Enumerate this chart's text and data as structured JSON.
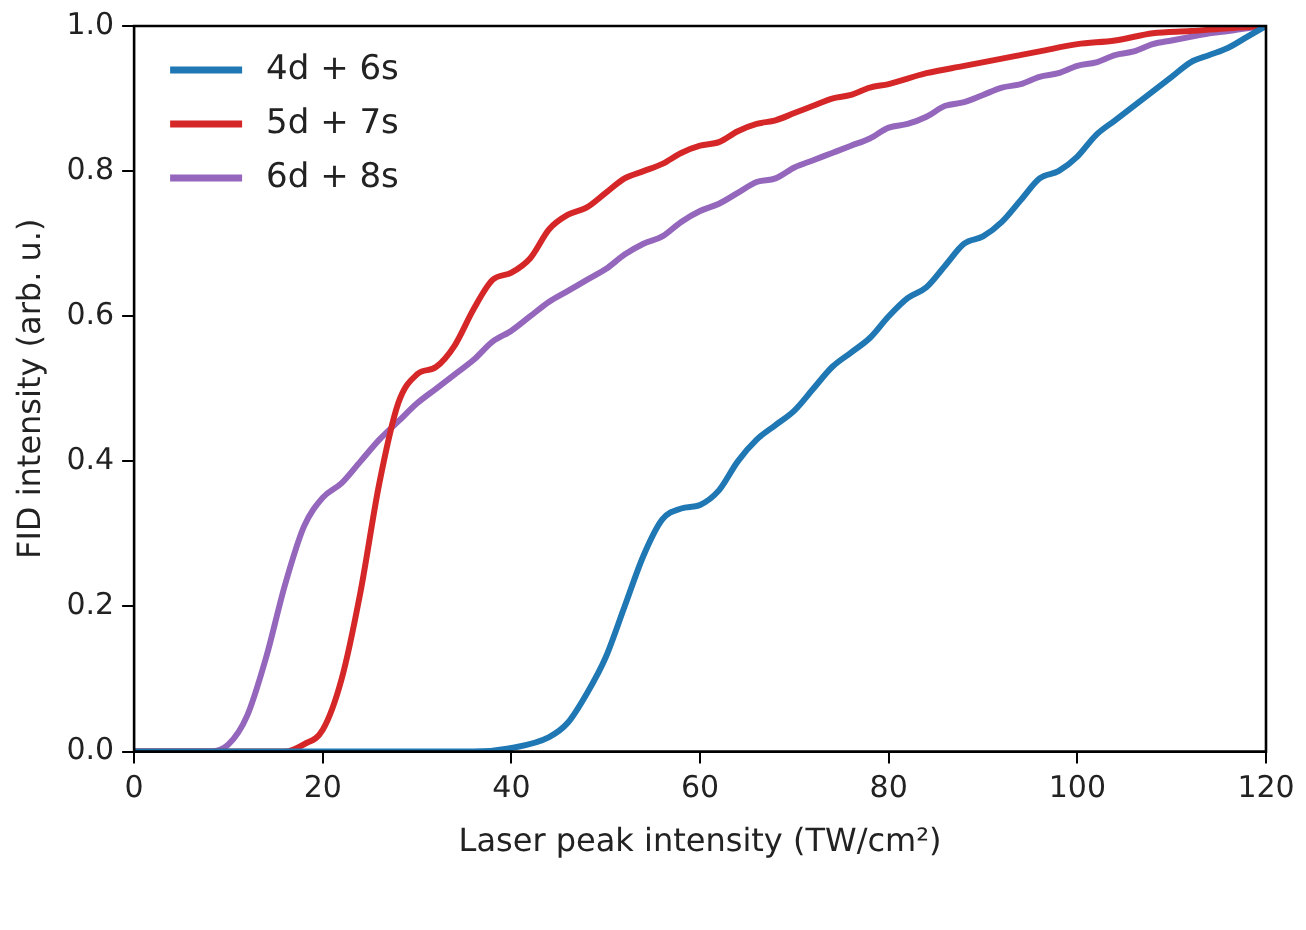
{
  "chart_data": {
    "type": "line",
    "xlabel": "Laser peak intensity (TW/cm²)",
    "ylabel": "FID intensity (arb. u.)",
    "xlim": [
      0,
      120
    ],
    "xticks": [
      0,
      20,
      40,
      60,
      80,
      100,
      120
    ],
    "ylim": [
      0,
      1.0
    ],
    "yticks": [
      {
        "value": 0,
        "label": "0.0"
      },
      {
        "value": 0.2,
        "label": "0.2"
      },
      {
        "value": 0.4,
        "label": "0.4"
      },
      {
        "value": 0.6,
        "label": "0.6"
      },
      {
        "value": 0.8,
        "label": "0.8"
      },
      {
        "value": 1.0,
        "label": "1.0"
      }
    ],
    "grid": false,
    "legend": "top left",
    "marker": "none",
    "line_style": "solid",
    "series": [
      {
        "name": "4d + 6s",
        "color": "#1f77b4",
        "x": [
          0,
          20,
          36,
          40,
          44,
          46,
          48,
          50,
          52,
          54,
          56,
          58,
          60,
          62,
          64,
          66,
          68,
          70,
          72,
          74,
          76,
          78,
          80,
          82,
          84,
          86,
          88,
          90,
          92,
          94,
          96,
          98,
          100,
          102,
          104,
          106,
          108,
          110,
          112,
          114,
          116,
          118,
          120
        ],
        "values": [
          0,
          0,
          0,
          0.005,
          0.02,
          0.04,
          0.08,
          0.13,
          0.2,
          0.27,
          0.32,
          0.335,
          0.34,
          0.36,
          0.4,
          0.43,
          0.45,
          0.47,
          0.5,
          0.53,
          0.55,
          0.57,
          0.6,
          0.625,
          0.64,
          0.67,
          0.7,
          0.71,
          0.73,
          0.76,
          0.79,
          0.8,
          0.82,
          0.85,
          0.87,
          0.89,
          0.91,
          0.93,
          0.95,
          0.96,
          0.97,
          0.985,
          1.0
        ]
      },
      {
        "name": "5d + 7s",
        "color": "#d62728",
        "x": [
          0,
          10,
          16,
          18,
          20,
          22,
          24,
          26,
          28,
          30,
          32,
          34,
          36,
          38,
          40,
          42,
          44,
          46,
          48,
          50,
          52,
          54,
          56,
          58,
          60,
          62,
          64,
          66,
          68,
          70,
          72,
          74,
          76,
          78,
          80,
          84,
          88,
          92,
          96,
          100,
          104,
          108,
          112,
          116,
          120
        ],
        "values": [
          0,
          0,
          0,
          0.01,
          0.03,
          0.1,
          0.22,
          0.37,
          0.48,
          0.52,
          0.53,
          0.56,
          0.61,
          0.65,
          0.66,
          0.68,
          0.72,
          0.74,
          0.75,
          0.77,
          0.79,
          0.8,
          0.81,
          0.825,
          0.835,
          0.84,
          0.855,
          0.865,
          0.87,
          0.88,
          0.89,
          0.9,
          0.905,
          0.915,
          0.92,
          0.935,
          0.945,
          0.955,
          0.965,
          0.975,
          0.98,
          0.99,
          0.993,
          0.997,
          1.0
        ]
      },
      {
        "name": "6d + 8s",
        "color": "#9467bd",
        "x": [
          0,
          8,
          10,
          12,
          14,
          16,
          18,
          20,
          22,
          24,
          26,
          28,
          30,
          32,
          34,
          36,
          38,
          40,
          42,
          44,
          46,
          48,
          50,
          52,
          54,
          56,
          58,
          60,
          62,
          64,
          66,
          68,
          70,
          72,
          74,
          76,
          78,
          80,
          82,
          84,
          86,
          88,
          90,
          92,
          94,
          96,
          98,
          100,
          102,
          104,
          106,
          108,
          110,
          112,
          114,
          116,
          118,
          120
        ],
        "values": [
          0,
          0,
          0.01,
          0.05,
          0.13,
          0.23,
          0.31,
          0.35,
          0.37,
          0.4,
          0.43,
          0.455,
          0.48,
          0.5,
          0.52,
          0.54,
          0.565,
          0.58,
          0.6,
          0.62,
          0.635,
          0.65,
          0.665,
          0.685,
          0.7,
          0.71,
          0.73,
          0.745,
          0.755,
          0.77,
          0.785,
          0.79,
          0.805,
          0.815,
          0.825,
          0.835,
          0.845,
          0.86,
          0.865,
          0.875,
          0.89,
          0.895,
          0.905,
          0.915,
          0.92,
          0.93,
          0.935,
          0.945,
          0.95,
          0.96,
          0.965,
          0.975,
          0.98,
          0.985,
          0.99,
          0.993,
          0.997,
          1.0
        ]
      }
    ]
  }
}
